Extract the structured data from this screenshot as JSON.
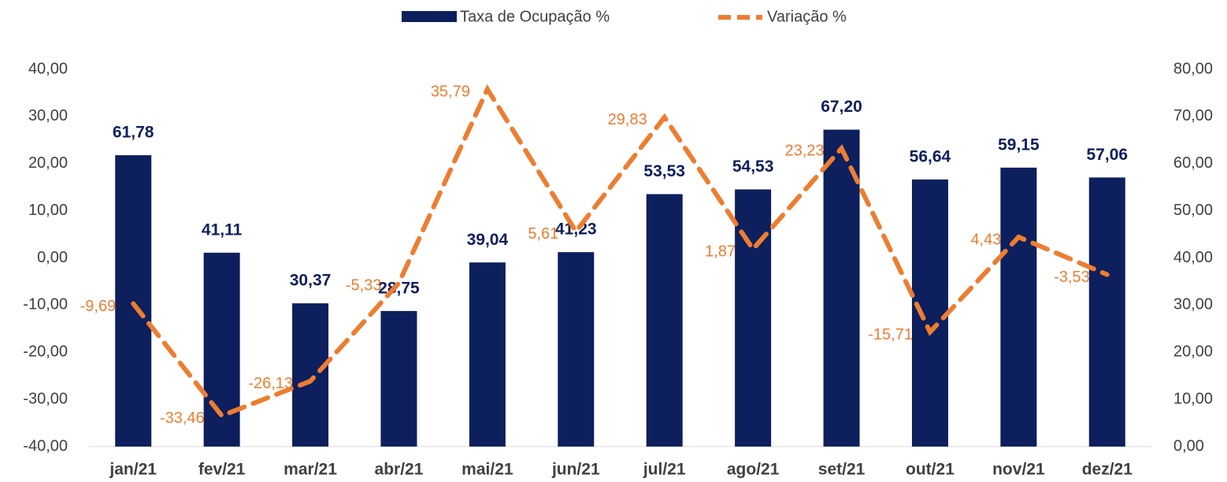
{
  "chart_data": {
    "type": "bar-line",
    "categories": [
      "jan/21",
      "fev/21",
      "mar/21",
      "abr/21",
      "mai/21",
      "jun/21",
      "jul/21",
      "ago/21",
      "set/21",
      "out/21",
      "nov/21",
      "dez/21"
    ],
    "series": [
      {
        "name": "Taxa de Ocupação %",
        "type": "bar",
        "axis": "y2",
        "color": "#0d1f5c",
        "values": [
          61.78,
          41.11,
          30.37,
          28.75,
          39.04,
          41.23,
          53.53,
          54.53,
          67.2,
          56.64,
          59.15,
          57.06
        ],
        "value_labels": [
          "61,78",
          "41,11",
          "30,37",
          "28,75",
          "39,04",
          "41,23",
          "53,53",
          "54,53",
          "67,20",
          "56,64",
          "59,15",
          "57,06"
        ]
      },
      {
        "name": "Variação %",
        "type": "line",
        "axis": "y",
        "color": "#ed7d31",
        "values": [
          -9.69,
          -33.46,
          -26.13,
          -5.33,
          35.79,
          5.61,
          29.83,
          1.87,
          23.23,
          -15.71,
          4.43,
          -3.53
        ],
        "value_labels": [
          "-9,69",
          "-33,46",
          "-26,13",
          "-5,33",
          "35,79",
          "5,61",
          "29,83",
          "1,87",
          "23,23",
          "-15,71",
          "4,43",
          "-3,53"
        ]
      }
    ],
    "ylim": [
      -40,
      40
    ],
    "yticks": [
      {
        "value": -40,
        "label": "-40,00"
      },
      {
        "value": -30,
        "label": "-30,00"
      },
      {
        "value": -20,
        "label": "-20,00"
      },
      {
        "value": -10,
        "label": "-10,00"
      },
      {
        "value": 0,
        "label": "0,00"
      },
      {
        "value": 10,
        "label": "10,00"
      },
      {
        "value": 20,
        "label": "20,00"
      },
      {
        "value": 30,
        "label": "30,00"
      },
      {
        "value": 40,
        "label": "40,00"
      }
    ],
    "y2lim": [
      0,
      80
    ],
    "y2ticks": [
      {
        "value": 0,
        "label": "0,00"
      },
      {
        "value": 10,
        "label": "10,00"
      },
      {
        "value": 20,
        "label": "20,00"
      },
      {
        "value": 30,
        "label": "30,00"
      },
      {
        "value": 40,
        "label": "40,00"
      },
      {
        "value": 50,
        "label": "50,00"
      },
      {
        "value": 60,
        "label": "60,00"
      },
      {
        "value": 70,
        "label": "70,00"
      },
      {
        "value": 80,
        "label": "80,00"
      }
    ],
    "legend": "top"
  }
}
